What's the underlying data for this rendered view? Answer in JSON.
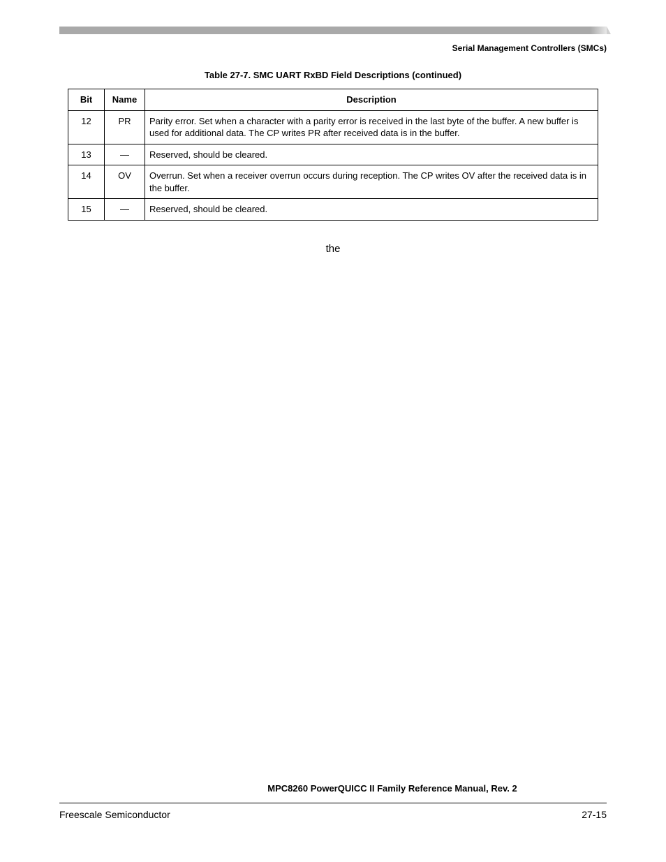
{
  "header": {
    "section": "Serial Management Controllers (SMCs)"
  },
  "table": {
    "caption": "Table 27-7. SMC UART RxBD Field Descriptions (continued)",
    "columns": [
      "Bit",
      "Name",
      "Description"
    ],
    "rows": [
      {
        "bit": "12",
        "name": "PR",
        "desc": "Parity error. Set when a character with a parity error is received in the last byte of the buffer. A new buffer is used for additional data. The CP writes PR after received data is in the buffer."
      },
      {
        "bit": "13",
        "name": "—",
        "desc": "Reserved, should be cleared."
      },
      {
        "bit": "14",
        "name": "OV",
        "desc": "Overrun. Set when a receiver overrun occurs during reception. The CP writes OV after the received data is in the buffer."
      },
      {
        "bit": "15",
        "name": "—",
        "desc": "Reserved, should be cleared."
      }
    ]
  },
  "stray_text": "the",
  "footer": {
    "title": "MPC8260 PowerQUICC II Family Reference Manual, Rev. 2",
    "left": "Freescale Semiconductor",
    "right": "27-15"
  },
  "colors": {
    "bar": "#a9a9a9",
    "text": "#000000",
    "background": "#ffffff",
    "border": "#000000"
  }
}
